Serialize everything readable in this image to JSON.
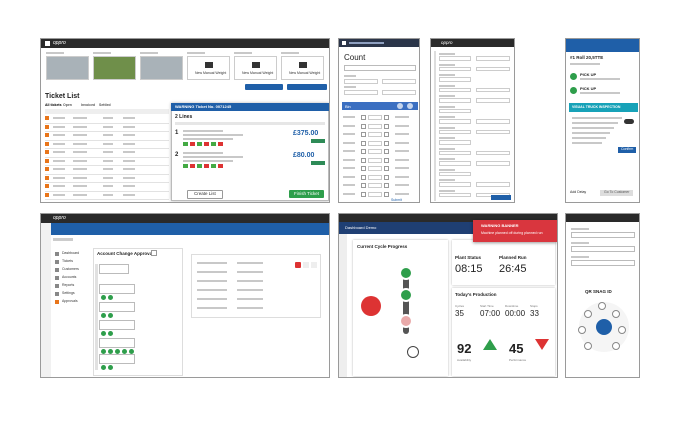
{
  "ticket_list": {
    "logo": "oppro",
    "title": "Ticket List",
    "camera_label": "New Manual Weight",
    "tabs": [
      "All tickets",
      "Open",
      "Invoiced",
      "Settled"
    ],
    "panel_title": "WARNING Ticket No. 0071245",
    "lines_label": "2 Lines",
    "line_numbers": [
      "1",
      "2"
    ],
    "line_amounts": [
      "£375.00",
      "£80.00"
    ],
    "create_button": "Create List",
    "finish_button": "Finish Ticket"
  },
  "count_screen": {
    "title": "Count",
    "section": "Bin",
    "submit": "Submit"
  },
  "form_screen": {
    "logo": "oppro"
  },
  "mobile_job": {
    "title": "#1 Roll 20,5TTE",
    "stops": [
      "PICK UP",
      "PICK UP"
    ],
    "banner": "VISUAL TRUCK INSPECTION",
    "confirm": "Confirm",
    "buttons": [
      "Add Delay",
      "Go To Customer"
    ]
  },
  "approvals": {
    "logo": "oppro",
    "title": "Account Change Approvals",
    "sidebar": [
      "Dashboard",
      "Tickets",
      "Customers",
      "Accounts",
      "Reports",
      "Settings",
      "Approvals"
    ]
  },
  "cycle": {
    "header": "Dashboard Demo",
    "progress_title": "Current Cycle Progress",
    "plant_status": "Plant Status",
    "planned_run": "Planned Run",
    "plant_time": "08:15",
    "run_time": "26:45",
    "production_title": "Today's Production",
    "stats": [
      {
        "label": "Cycles",
        "value": "35"
      },
      {
        "label": "Start Time",
        "value": "07:00"
      },
      {
        "label": "Downtime",
        "value": "00:00"
      },
      {
        "label": "Stops",
        "value": "33"
      }
    ],
    "gauges": [
      {
        "value": "92",
        "label": "Availability"
      },
      {
        "value": "45",
        "label": "Performance"
      }
    ],
    "warning_title": "WARNING BANNER",
    "warning_text": "Machine planned off during planned run"
  },
  "snag": {
    "title": "QR SNAG ID"
  }
}
